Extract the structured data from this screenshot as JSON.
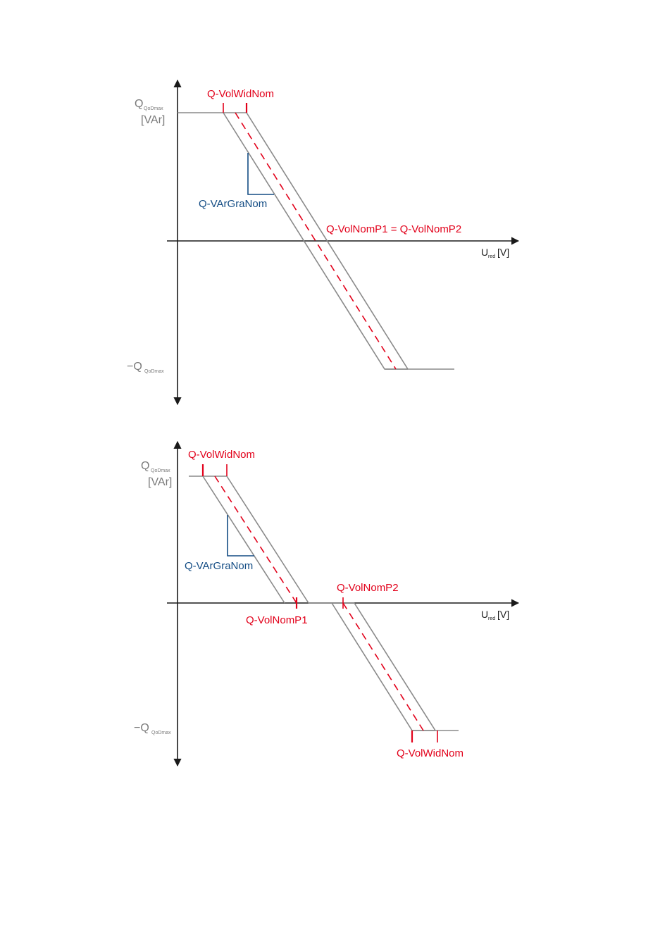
{
  "top": {
    "y_axis": {
      "symbol": "Q",
      "subscript": "QoDmax",
      "unit": "[VAr]"
    },
    "y_min": {
      "prefix": "−Q",
      "subscript": "QoDmax"
    },
    "x_axis": {
      "symbol": "U",
      "subscript": "red",
      "unit": "[V]"
    },
    "width_label": "Q-VolWidNom",
    "gradient_label": "Q-VArGraNom",
    "nominal_label": "Q-VolNomP1 = Q-VolNomP2"
  },
  "bottom": {
    "y_axis": {
      "symbol": "Q",
      "subscript": "QoDmax",
      "unit": "[VAr]"
    },
    "y_min": {
      "prefix": "−Q",
      "subscript": "QoDmax"
    },
    "x_axis": {
      "symbol": "U",
      "subscript": "red",
      "unit": "[V]"
    },
    "width_label_top": "Q-VolWidNom",
    "width_label_bottom": "Q-VolWidNom",
    "gradient_label": "Q-VArGraNom",
    "nominal_p1_label": "Q-VolNomP1",
    "nominal_p2_label": "Q-VolNomP2"
  },
  "colors": {
    "axis": "#1a1a1a",
    "band": "#8a8a8a",
    "characteristic": "#e2001a",
    "gradient": "#134c84",
    "labels_gray": "#7a7a7a"
  }
}
